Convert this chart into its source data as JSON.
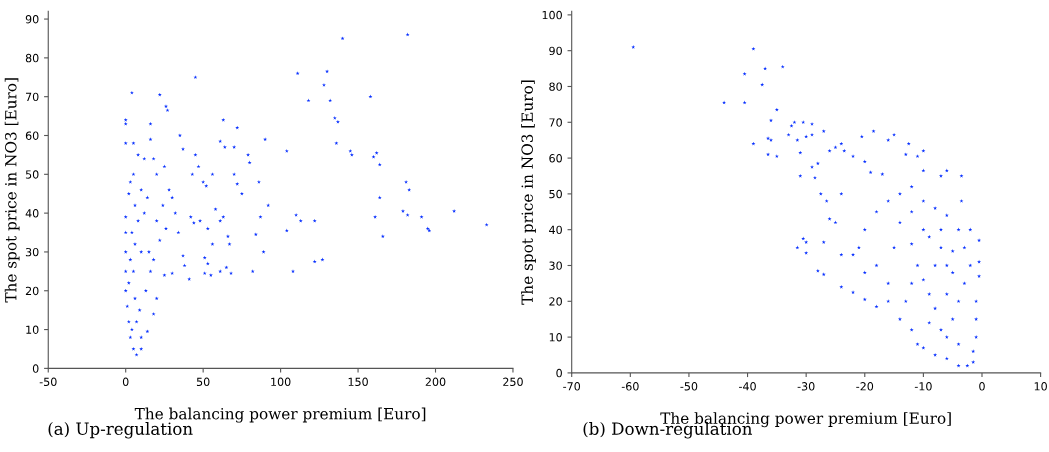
{
  "chart_data": [
    {
      "type": "scatter",
      "xlabel": "The balancing power premium [Euro]",
      "ylabel": "The spot price in NO3 [Euro]",
      "annotations": [
        "(a) Up-regulation"
      ],
      "xlim": [
        -50,
        250
      ],
      "ylim": [
        0,
        92
      ],
      "xticks": [
        -50,
        0,
        50,
        100,
        150,
        200,
        250
      ],
      "yticks": [
        0,
        10,
        20,
        30,
        40,
        50,
        60,
        70,
        80,
        90
      ],
      "grid": false,
      "marker": "star",
      "series": [
        {
          "color": "#0a32ff",
          "x": [
            0,
            0,
            0,
            4,
            5,
            16,
            22,
            26,
            27,
            45,
            35,
            37,
            63,
            61,
            72,
            90,
            104,
            111,
            118,
            128,
            130,
            132,
            135,
            137,
            136,
            140,
            145,
            146,
            158,
            160,
            162,
            164,
            182,
            181,
            183,
            164,
            161,
            166,
            179,
            182,
            191,
            195,
            196,
            212,
            233,
            122,
            113,
            110,
            104,
            108,
            122,
            127,
            92,
            87,
            84,
            89,
            82,
            86,
            75,
            72,
            70,
            79,
            80,
            70,
            64,
            63,
            61,
            58,
            66,
            67,
            65,
            68,
            61,
            56,
            51,
            53,
            55,
            51,
            48,
            53,
            50,
            52,
            56,
            45,
            47,
            43,
            42,
            44,
            41,
            38,
            37,
            34,
            30,
            25,
            20,
            18,
            14,
            10,
            7,
            5,
            3,
            2,
            1,
            0,
            0,
            0,
            0,
            0,
            2,
            3,
            5,
            8,
            12,
            16,
            18,
            20,
            25,
            28,
            30,
            32,
            26,
            22,
            15,
            10,
            6,
            4,
            8,
            12,
            6,
            3,
            5,
            2,
            6,
            9,
            7,
            4,
            10,
            13,
            16,
            18,
            20,
            14,
            10,
            24
          ],
          "values": [
            64,
            58,
            63,
            71,
            58,
            63,
            70.5,
            67.5,
            66.5,
            75,
            60,
            56.5,
            64,
            58.5,
            62,
            59,
            56,
            76,
            69,
            73,
            76.5,
            69,
            64.5,
            63.5,
            58,
            85,
            56,
            55,
            70,
            54.5,
            55.5,
            52.5,
            86,
            48,
            46,
            44,
            39,
            34,
            40.5,
            39.5,
            39,
            36,
            35.5,
            40.5,
            37,
            38,
            38,
            39.5,
            35.5,
            25,
            27.5,
            28,
            42,
            39,
            34.5,
            30,
            25,
            48,
            45,
            47.5,
            50,
            55,
            53,
            57,
            57,
            39,
            38,
            41,
            34,
            32,
            26,
            24.5,
            25,
            32,
            28.5,
            27,
            24,
            24.5,
            38,
            36,
            48,
            47,
            50,
            55,
            52,
            50,
            39,
            37.5,
            23,
            26.5,
            29,
            35,
            24.5,
            24,
            18,
            14,
            9.5,
            5,
            3.5,
            5,
            8,
            12,
            16,
            20,
            25,
            30,
            35,
            39,
            45,
            48,
            50,
            55,
            54,
            59,
            54,
            50,
            52,
            46,
            44,
            40,
            36,
            33,
            30,
            30,
            32,
            35,
            38,
            40,
            42,
            28,
            25,
            22,
            18,
            15,
            12,
            10,
            8,
            20,
            25,
            28,
            38,
            44,
            46,
            42
          ]
        }
      ]
    },
    {
      "type": "scatter",
      "xlabel": "The balancing power premium [Euro]",
      "ylabel": "The spot price in NO3 [Euro]",
      "annotations": [
        "(b) Down-regulation"
      ],
      "xlim": [
        -70,
        10
      ],
      "ylim": [
        0,
        101
      ],
      "xticks": [
        -70,
        -60,
        -50,
        -40,
        -30,
        -20,
        -10,
        0,
        10
      ],
      "yticks": [
        0,
        10,
        20,
        30,
        40,
        50,
        60,
        70,
        80,
        90,
        100
      ],
      "grid": false,
      "marker": "star",
      "series": [
        {
          "color": "#0a32ff",
          "x": [
            -59.5,
            -39,
            -40.5,
            -37,
            -34,
            -37.5,
            -44,
            -40.5,
            -35,
            -36,
            -39,
            -36.5,
            -36,
            -36.5,
            -35,
            -33,
            -32.5,
            -32,
            -30.5,
            -29,
            -29,
            -30,
            -31.5,
            -31,
            -31,
            -29,
            -28,
            -28.5,
            -27,
            -27.5,
            -26.5,
            -26,
            -27,
            -28,
            -27,
            -30.5,
            -30,
            -31.5,
            -30,
            -26,
            -25,
            -24,
            -23.5,
            -22,
            -20.5,
            -18.5,
            -16,
            -15,
            -12.5,
            -10,
            -11,
            -13,
            -20,
            -19,
            -17,
            -24,
            -25,
            -24,
            -24,
            -22,
            -20,
            -18,
            -16,
            -14,
            -12,
            -11,
            -10,
            -8,
            -6,
            -4,
            -2.5,
            -1.5,
            -1.5,
            -1,
            -1,
            -1,
            -0.5,
            -0.5,
            -0.5,
            -2,
            -3.5,
            -3.5,
            -6,
            -7,
            -10,
            -12,
            -14,
            -16,
            -18,
            -20,
            -21,
            -22,
            -20,
            -18,
            -16,
            -15,
            -14,
            -12,
            -10,
            -8,
            -6,
            -4,
            -3,
            -2,
            -3,
            -4,
            -5,
            -6,
            -7,
            -8,
            -9,
            -10,
            -11,
            -12,
            -9,
            -7,
            -6,
            -5,
            -8,
            -5,
            -7,
            -10,
            -12,
            -13,
            -9,
            -4,
            -6
          ],
          "values": [
            91,
            90.5,
            83.5,
            85,
            85.5,
            80.5,
            75.5,
            75.5,
            73.5,
            70.5,
            64,
            65.5,
            65,
            61,
            60.5,
            66.5,
            69,
            70,
            70,
            69.5,
            66.5,
            66,
            65,
            61.5,
            55,
            57.5,
            58.5,
            54.5,
            67.5,
            50,
            48,
            43,
            36.5,
            28.5,
            27.5,
            37.5,
            36.5,
            35,
            33.5,
            62,
            63,
            64,
            62,
            60.5,
            66,
            67.5,
            65,
            66.5,
            64,
            62,
            60.5,
            61,
            59,
            56,
            55.5,
            50,
            42,
            33,
            24,
            22.5,
            20.5,
            18.5,
            20,
            15,
            12,
            8,
            7,
            5,
            4,
            2,
            2,
            3,
            6,
            10,
            15,
            20,
            27,
            31,
            37,
            40,
            48,
            55,
            56.5,
            55,
            56.5,
            52,
            50,
            48,
            45,
            40,
            35,
            33,
            28,
            30,
            25,
            35,
            42,
            45,
            48,
            46,
            44,
            40,
            35,
            30,
            25,
            20,
            15,
            10,
            12,
            18,
            22,
            26,
            30,
            36,
            38,
            35,
            30,
            28,
            30,
            34,
            40,
            40,
            25,
            20,
            14,
            8,
            22
          ]
        }
      ]
    }
  ]
}
